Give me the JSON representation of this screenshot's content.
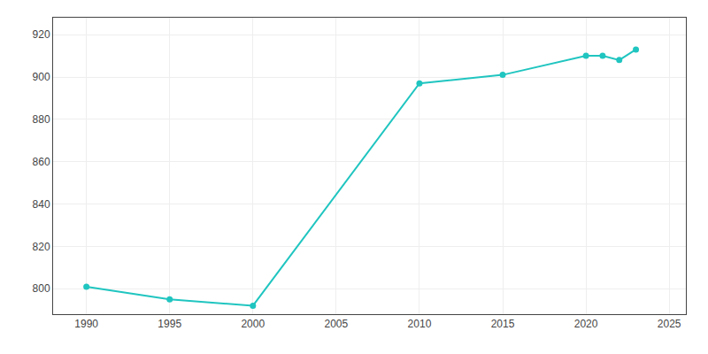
{
  "chart_data": {
    "type": "line",
    "x": [
      1990,
      1995,
      2000,
      2010,
      2015,
      2020,
      2021,
      2022,
      2023
    ],
    "values": [
      801,
      795,
      792,
      897,
      901,
      910,
      910,
      908,
      913
    ],
    "color": "#20c5c0",
    "marker": "circle",
    "xlim": [
      1988,
      2026
    ],
    "xticks": [
      1990,
      1995,
      2000,
      2005,
      2010,
      2015,
      2020,
      2025
    ],
    "ylim": [
      788,
      928
    ],
    "yticks": [
      800,
      820,
      840,
      860,
      880,
      900,
      920
    ],
    "grid": true
  }
}
